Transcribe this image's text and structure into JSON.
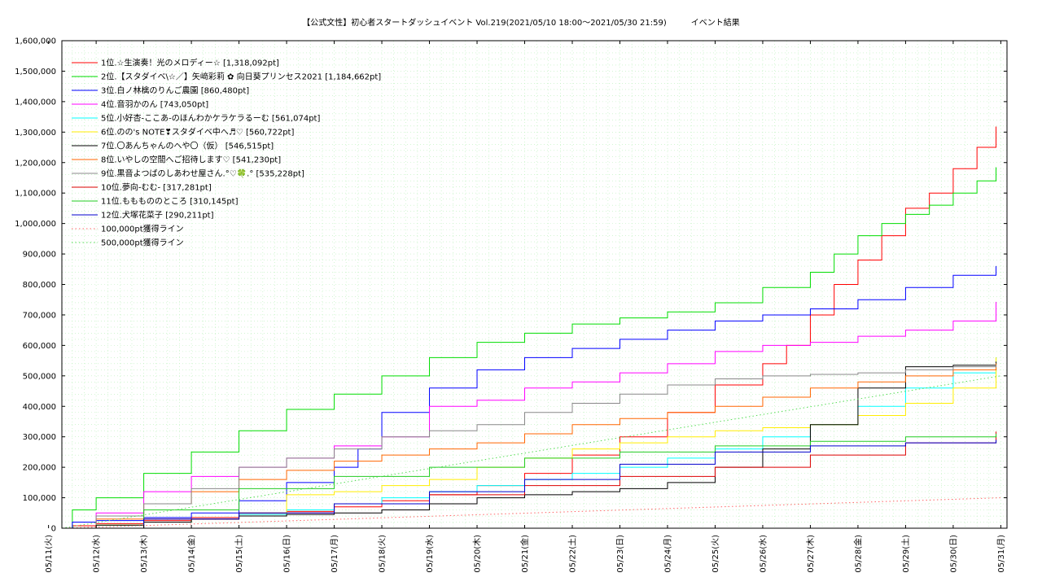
{
  "chart_data": {
    "type": "line",
    "title": "【公式文性】初心者スタートダッシュイベント Vol.219(2021/05/10 18:00〜2021/05/30 21:59)　　　イベント結果",
    "xlabel": "",
    "ylabel": "",
    "ylim": [
      0,
      1600000
    ],
    "y_ticks": [
      "0",
      "100,000",
      "200,000",
      "300,000",
      "400,000",
      "500,000",
      "600,000",
      "700,000",
      "800,000",
      "900,000",
      "1,000,000",
      "1,100,000",
      "1,200,000",
      "1,300,000",
      "1,400,000",
      "1,500,000",
      "1,600,000"
    ],
    "x_ticks": [
      "05/11(火)",
      "05/12(水)",
      "05/13(木)",
      "05/14(金)",
      "05/15(土)",
      "05/16(日)",
      "05/17(月)",
      "05/18(火)",
      "05/19(水)",
      "05/20(木)",
      "05/21(金)",
      "05/22(土)",
      "05/23(日)",
      "05/24(月)",
      "05/25(火)",
      "05/26(水)",
      "05/27(木)",
      "05/28(金)",
      "05/29(土)",
      "05/30(日)",
      "05/31(月)"
    ],
    "grid": true,
    "legend_position": "top-left",
    "x_unit": "days since 2021/05/11 00:00",
    "series": [
      {
        "name": "1位.☆生演奏！光のメロディー☆ [1,318,092pt]",
        "color": "#ff0000",
        "dash": "",
        "x": [
          0,
          0.5,
          1,
          2,
          3,
          4,
          5,
          6,
          7,
          8,
          9,
          10,
          11,
          12,
          13,
          14,
          15,
          15.5,
          16,
          16.5,
          17,
          17.5,
          18,
          18.5,
          19,
          19.5,
          19.9
        ],
        "y": [
          0,
          8000,
          15000,
          25000,
          35000,
          45000,
          55000,
          70000,
          90000,
          110000,
          140000,
          180000,
          240000,
          300000,
          380000,
          470000,
          540000,
          600000,
          700000,
          800000,
          880000,
          960000,
          1050000,
          1100000,
          1180000,
          1250000,
          1318092
        ]
      },
      {
        "name": "2位.【スタダイベ\\☆／】矢﨑彩莉 ✿ 向日葵プリンセス2021 [1,184,662pt]",
        "color": "#00dd00",
        "dash": "",
        "x": [
          0,
          0.5,
          1,
          2,
          3,
          4,
          5,
          6,
          7,
          8,
          9,
          10,
          11,
          12,
          13,
          14,
          15,
          16,
          16.5,
          17,
          17.5,
          18,
          18.5,
          19,
          19.5,
          19.9
        ],
        "y": [
          0,
          60000,
          100000,
          180000,
          250000,
          320000,
          390000,
          440000,
          500000,
          560000,
          610000,
          640000,
          670000,
          690000,
          710000,
          740000,
          790000,
          840000,
          900000,
          960000,
          1000000,
          1030000,
          1060000,
          1100000,
          1140000,
          1184662
        ]
      },
      {
        "name": "3位.白ノ林檎のりんご農園 [860,480pt]",
        "color": "#0000ff",
        "dash": "",
        "x": [
          0,
          0.5,
          1,
          2,
          3,
          4,
          5,
          6,
          6.5,
          7,
          8,
          9,
          10,
          11,
          12,
          13,
          14,
          15,
          16,
          17,
          18,
          19,
          19.9
        ],
        "y": [
          0,
          20000,
          25000,
          35000,
          50000,
          90000,
          150000,
          200000,
          260000,
          380000,
          460000,
          520000,
          560000,
          590000,
          620000,
          650000,
          680000,
          700000,
          720000,
          750000,
          790000,
          830000,
          860480
        ]
      },
      {
        "name": "4位.音羽かのん [743,050pt]",
        "color": "#ff00ff",
        "dash": "",
        "x": [
          0,
          1,
          2,
          3,
          4,
          5,
          6,
          7,
          8,
          9,
          10,
          11,
          12,
          13,
          14,
          15,
          16,
          17,
          18,
          19,
          19.9
        ],
        "y": [
          0,
          50000,
          120000,
          170000,
          200000,
          230000,
          270000,
          300000,
          400000,
          420000,
          460000,
          480000,
          510000,
          540000,
          580000,
          600000,
          610000,
          630000,
          650000,
          680000,
          743050
        ]
      },
      {
        "name": "5位.小好杏-ここあ-のほんわかケラケラるーむ [561,074pt]",
        "color": "#00ffff",
        "dash": "",
        "x": [
          0,
          1,
          2,
          3,
          4,
          5,
          6,
          7,
          8,
          9,
          10,
          11,
          12,
          13,
          14,
          15,
          16,
          17,
          18,
          19,
          19.9
        ],
        "y": [
          0,
          10000,
          20000,
          30000,
          45000,
          60000,
          80000,
          100000,
          120000,
          140000,
          160000,
          180000,
          200000,
          230000,
          260000,
          300000,
          340000,
          400000,
          460000,
          510000,
          561074
        ]
      },
      {
        "name": "6位.のの's NOTE❣スタダイベ中へ♬♡ [560,722pt]",
        "color": "#ffee00",
        "dash": "",
        "x": [
          0,
          1,
          2,
          3,
          4,
          5,
          6,
          7,
          8,
          9,
          10,
          11,
          12,
          13,
          14,
          15,
          16,
          17,
          18,
          19,
          19.9
        ],
        "y": [
          0,
          10000,
          20000,
          30000,
          50000,
          110000,
          120000,
          140000,
          160000,
          200000,
          230000,
          260000,
          280000,
          300000,
          320000,
          330000,
          340000,
          370000,
          410000,
          460000,
          560722
        ]
      },
      {
        "name": "7位.〇あんちゃんのへや〇（仮） [546,515pt]",
        "color": "#000000",
        "dash": "",
        "x": [
          0,
          1,
          2,
          3,
          4,
          5,
          6,
          7,
          8,
          9,
          10,
          11,
          12,
          13,
          14,
          15,
          16,
          17,
          18,
          19,
          19.9
        ],
        "y": [
          0,
          10000,
          20000,
          30000,
          40000,
          45000,
          50000,
          60000,
          80000,
          100000,
          110000,
          120000,
          130000,
          150000,
          200000,
          260000,
          340000,
          460000,
          530000,
          535000,
          546515
        ]
      },
      {
        "name": "8位.いやしの空間へご招待します♡ [541,230pt]",
        "color": "#ff6600",
        "dash": "",
        "x": [
          0,
          1,
          2,
          3,
          4,
          5,
          6,
          7,
          8,
          9,
          10,
          11,
          12,
          13,
          14,
          15,
          16,
          17,
          18,
          19,
          19.9
        ],
        "y": [
          0,
          30000,
          80000,
          120000,
          160000,
          190000,
          220000,
          240000,
          260000,
          280000,
          310000,
          340000,
          360000,
          380000,
          400000,
          430000,
          460000,
          480000,
          500000,
          520000,
          541230
        ]
      },
      {
        "name": "9位.黒音よつばのしあわせ屋さん.°♡🍀.° [535,228pt]",
        "color": "#888888",
        "dash": "",
        "x": [
          0,
          1,
          2,
          3,
          4,
          5,
          6,
          7,
          8,
          9,
          10,
          11,
          12,
          13,
          14,
          15,
          16,
          17,
          18,
          19,
          19.9
        ],
        "y": [
          0,
          40000,
          80000,
          130000,
          200000,
          230000,
          260000,
          300000,
          320000,
          340000,
          380000,
          410000,
          440000,
          470000,
          490000,
          500000,
          505000,
          510000,
          520000,
          530000,
          535228
        ]
      },
      {
        "name": "10位.夢向-むむ- [317,281pt]",
        "color": "#dd0000",
        "dash": "",
        "x": [
          0,
          2,
          4,
          6,
          8,
          10,
          12,
          14,
          16,
          18,
          19.9
        ],
        "y": [
          0,
          30000,
          50000,
          80000,
          110000,
          140000,
          170000,
          200000,
          240000,
          280000,
          317281
        ]
      },
      {
        "name": "11位.もももののところ [310,145pt]",
        "color": "#22cc22",
        "dash": "",
        "x": [
          0,
          2,
          4,
          6,
          8,
          10,
          12,
          14,
          16,
          18,
          19.9
        ],
        "y": [
          0,
          60000,
          130000,
          170000,
          200000,
          230000,
          250000,
          270000,
          285000,
          300000,
          310145
        ]
      },
      {
        "name": "12位.犬塚花菜子 [290,211pt]",
        "color": "#0000cc",
        "dash": "",
        "x": [
          0,
          2,
          4,
          6,
          8,
          10,
          12,
          14,
          16,
          18,
          19.9
        ],
        "y": [
          0,
          30000,
          50000,
          80000,
          120000,
          160000,
          210000,
          250000,
          270000,
          280000,
          290211
        ]
      },
      {
        "name": "100,000pt獲得ライン",
        "color": "#ff6666",
        "dash": "1.5,3",
        "x": [
          0,
          20
        ],
        "y": [
          0,
          100000
        ]
      },
      {
        "name": "500,000pt獲得ライン",
        "color": "#55dd55",
        "dash": "1.5,3",
        "x": [
          0,
          20
        ],
        "y": [
          0,
          500000
        ]
      }
    ]
  }
}
